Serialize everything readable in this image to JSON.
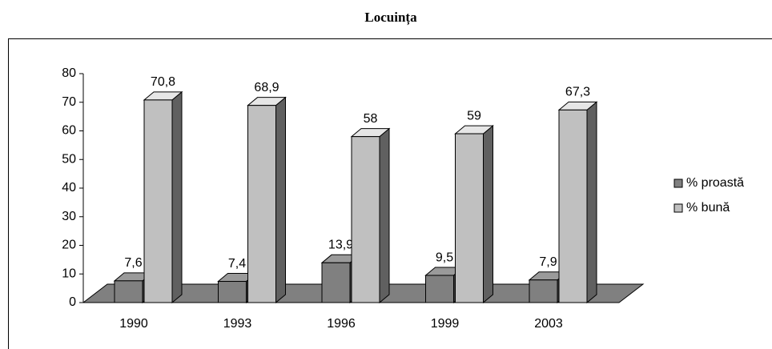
{
  "chart_data": {
    "type": "bar3d",
    "title": "Locuința",
    "categories": [
      "1990",
      "1993",
      "1996",
      "1999",
      "2003"
    ],
    "series": [
      {
        "name": "% proastă",
        "color": "#808080",
        "values": [
          7.6,
          7.4,
          13.9,
          9.5,
          7.9
        ],
        "value_labels": [
          "7,6",
          "7,4",
          "13,9",
          "9,5",
          "7,9"
        ]
      },
      {
        "name": "% bună",
        "color": "#c0c0c0",
        "values": [
          70.8,
          68.9,
          58,
          59,
          67.3
        ],
        "value_labels": [
          "70,8",
          "68,9",
          "58",
          "59",
          "67,3"
        ]
      }
    ],
    "ylim": [
      0,
      80
    ],
    "yticks": [
      0,
      10,
      20,
      30,
      40,
      50,
      60,
      70,
      80
    ],
    "grid": false,
    "legend": "right"
  }
}
